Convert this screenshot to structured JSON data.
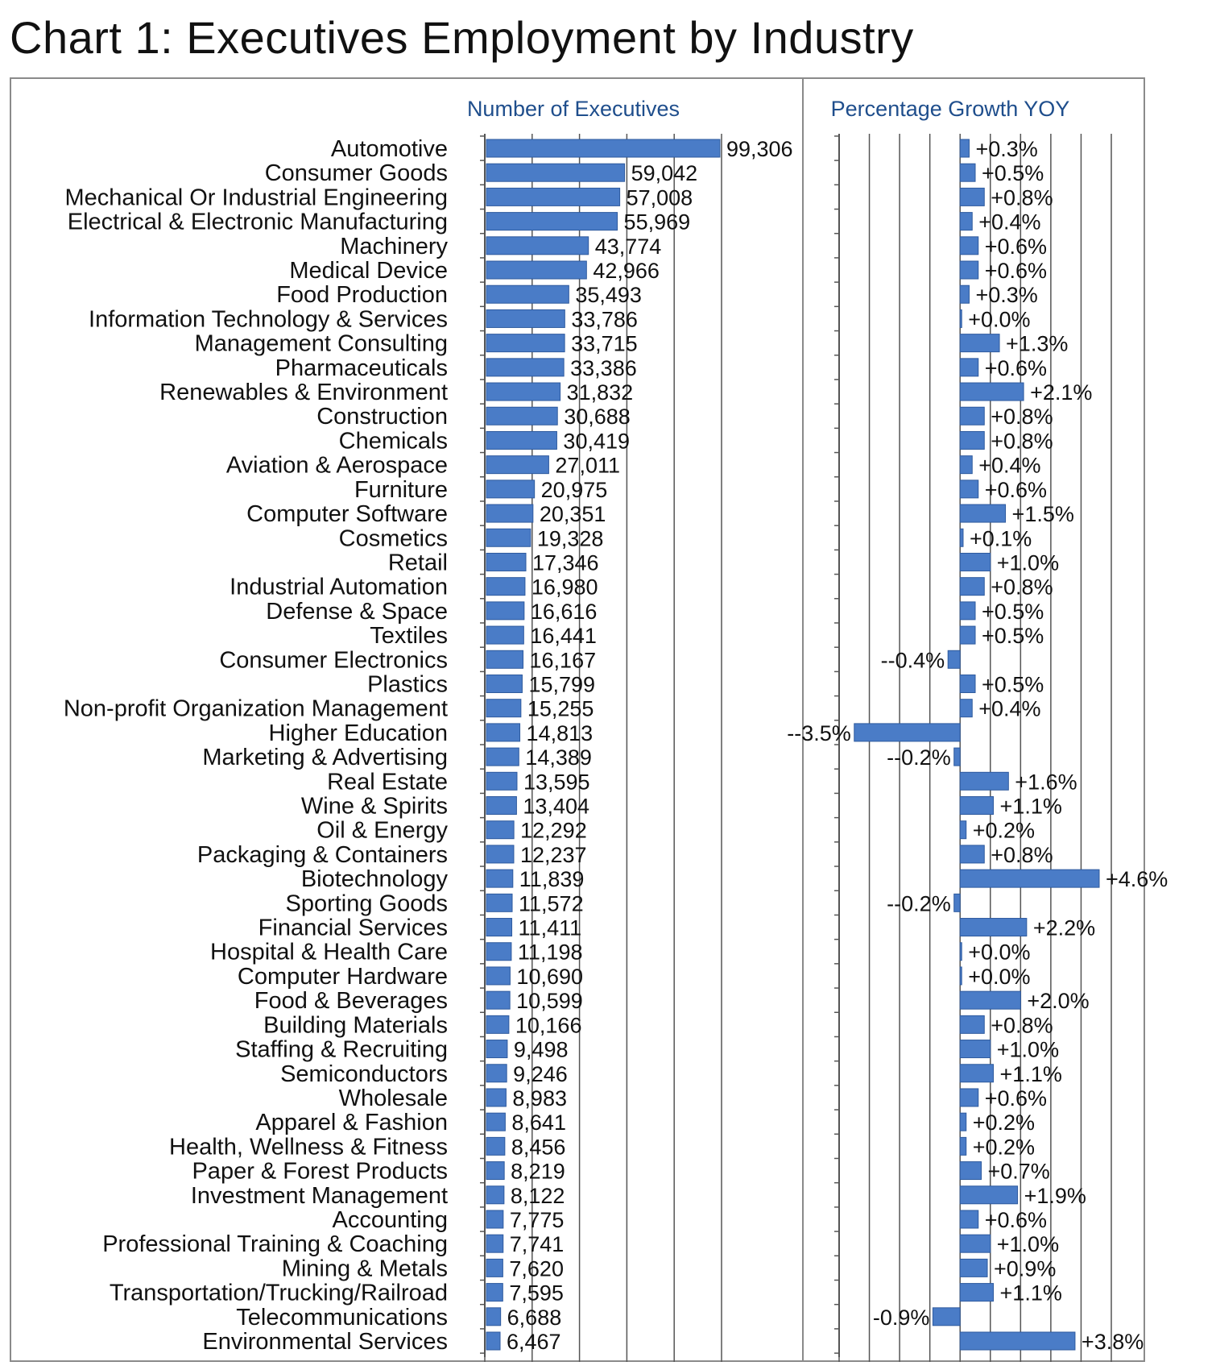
{
  "title": "Chart 1: Executives Employment by Industry",
  "colors": {
    "bar": "#4a7cc7",
    "bar_stroke": "#2e5a9e",
    "panel_title": "#1f4e8c",
    "grid": "#555555",
    "frame": "#8a8a8a"
  },
  "chart_data": [
    {
      "type": "bar",
      "orientation": "horizontal",
      "title": "Number of Executives",
      "xlim": [
        0,
        100000
      ],
      "grid": true,
      "categories": [
        "Automotive",
        "Consumer Goods",
        "Mechanical Or Industrial Engineering",
        "Electrical & Electronic Manufacturing",
        "Machinery",
        "Medical Device",
        "Food Production",
        "Information Technology & Services",
        "Management Consulting",
        "Pharmaceuticals",
        "Renewables & Environment",
        "Construction",
        "Chemicals",
        "Aviation & Aerospace",
        "Furniture",
        "Computer Software",
        "Cosmetics",
        "Retail",
        "Industrial Automation",
        "Defense & Space",
        "Textiles",
        "Consumer Electronics",
        "Plastics",
        "Non-profit Organization Management",
        "Higher Education",
        "Marketing & Advertising",
        "Real Estate",
        "Wine & Spirits",
        "Oil & Energy",
        "Packaging & Containers",
        "Biotechnology",
        "Sporting Goods",
        "Financial Services",
        "Hospital & Health Care",
        "Computer Hardware",
        "Food & Beverages",
        "Building Materials",
        "Staffing & Recruiting",
        "Semiconductors",
        "Wholesale",
        "Apparel & Fashion",
        "Health, Wellness & Fitness",
        "Paper & Forest Products",
        "Investment Management",
        "Accounting",
        "Professional Training & Coaching",
        "Mining & Metals",
        "Transportation/Trucking/Railroad",
        "Telecommunications",
        "Environmental Services"
      ],
      "values": [
        99306,
        59042,
        57008,
        55969,
        43774,
        42966,
        35493,
        33786,
        33715,
        33386,
        31832,
        30688,
        30419,
        27011,
        20975,
        20351,
        19328,
        17346,
        16980,
        16616,
        16441,
        16167,
        15799,
        15255,
        14813,
        14389,
        13595,
        13404,
        12292,
        12237,
        11839,
        11572,
        11411,
        11198,
        10690,
        10599,
        10166,
        9498,
        9246,
        8983,
        8641,
        8456,
        8219,
        8122,
        7775,
        7741,
        7620,
        7595,
        6688,
        6467
      ],
      "labels": [
        "99,306",
        "59,042",
        "57,008",
        "55,969",
        "43,774",
        "42,966",
        "35,493",
        "33,786",
        "33,715",
        "33,386",
        "31,832",
        "30,688",
        "30,419",
        "27,011",
        "20,975",
        "20,351",
        "19,328",
        "17,346",
        "16,980",
        "16,616",
        "16,441",
        "16,167",
        "15,799",
        "15,255",
        "14,813",
        "14,389",
        "13,595",
        "13,404",
        "12,292",
        "12,237",
        "11,839",
        "11,572",
        "11,411",
        "11,198",
        "10,690",
        "10,599",
        "10,166",
        "9,498",
        "9,246",
        "8,983",
        "8,641",
        "8,456",
        "8,219",
        "8,122",
        "7,775",
        "7,741",
        "7,620",
        "7,595",
        "6,688",
        "6,467"
      ]
    },
    {
      "type": "bar",
      "orientation": "horizontal",
      "title": "Percentage Growth YOY",
      "xlim": [
        -4,
        5
      ],
      "grid": true,
      "values": [
        0.3,
        0.5,
        0.8,
        0.4,
        0.6,
        0.6,
        0.3,
        0.0,
        1.3,
        0.6,
        2.1,
        0.8,
        0.8,
        0.4,
        0.6,
        1.5,
        0.1,
        1.0,
        0.8,
        0.5,
        0.5,
        -0.4,
        0.5,
        0.4,
        -3.5,
        -0.2,
        1.6,
        1.1,
        0.2,
        0.8,
        4.6,
        -0.2,
        2.2,
        0.0,
        0.0,
        2.0,
        0.8,
        1.0,
        1.1,
        0.6,
        0.2,
        0.2,
        0.7,
        1.9,
        0.6,
        1.0,
        0.9,
        1.1,
        -0.9,
        3.8
      ],
      "labels": [
        "+0.3%",
        "+0.5%",
        "+0.8%",
        "+0.4%",
        "+0.6%",
        "+0.6%",
        "+0.3%",
        "+0.0%",
        "+1.3%",
        "+0.6%",
        "+2.1%",
        "+0.8%",
        "+0.8%",
        "+0.4%",
        "+0.6%",
        "+1.5%",
        "+0.1%",
        "+1.0%",
        "+0.8%",
        "+0.5%",
        "+0.5%",
        "--0.4%",
        "+0.5%",
        "+0.4%",
        "--3.5%",
        "--0.2%",
        "+1.6%",
        "+1.1%",
        "+0.2%",
        "+0.8%",
        "+4.6%",
        "--0.2%",
        "+2.2%",
        "+0.0%",
        "+0.0%",
        "+2.0%",
        "+0.8%",
        "+1.0%",
        "+1.1%",
        "+0.6%",
        "+0.2%",
        "+0.2%",
        "+0.7%",
        "+1.9%",
        "+0.6%",
        "+1.0%",
        "+0.9%",
        "+1.1%",
        "-0.9%",
        "+3.8%"
      ]
    }
  ]
}
